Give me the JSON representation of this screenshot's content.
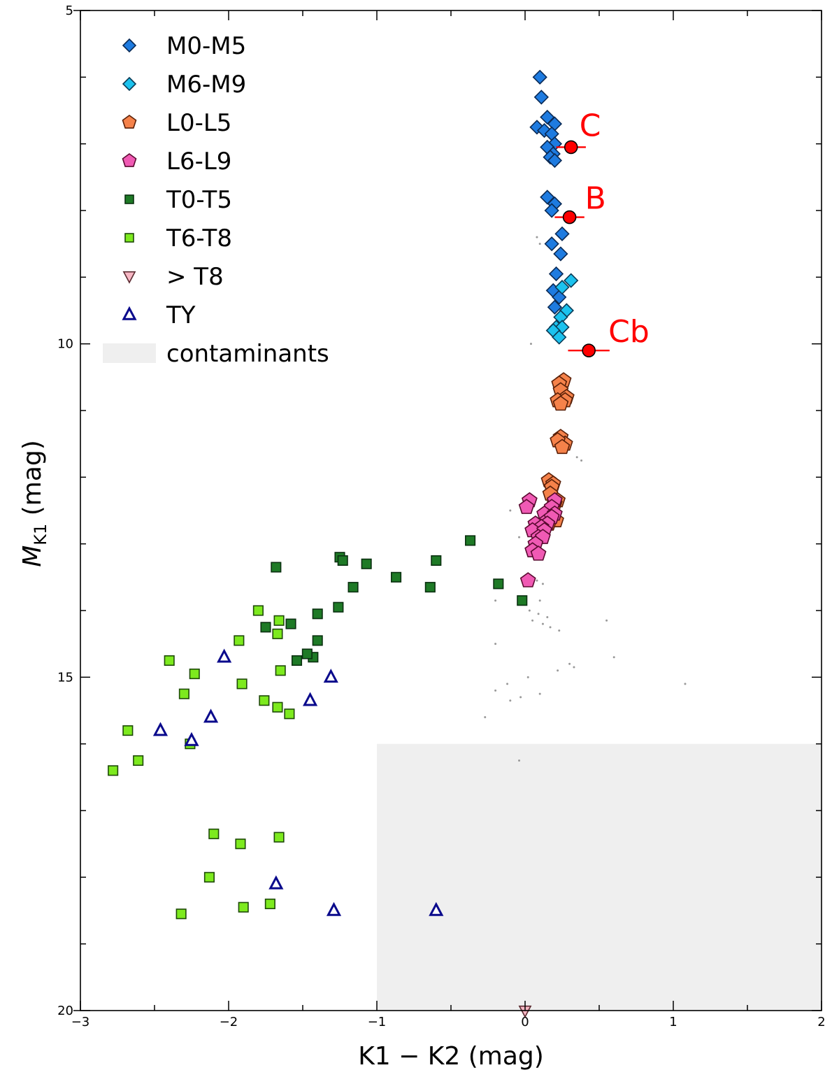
{
  "chart_data": {
    "type": "scatter",
    "xlabel": "K1 − K2 (mag)",
    "ylabel_main": "M",
    "ylabel_sub": "K1",
    "ylabel_unit": " (mag)",
    "xlim": [
      -3,
      2
    ],
    "ylim": [
      20,
      5
    ],
    "y_inverted": true,
    "x_ticks": [
      -3,
      -2,
      -1,
      0,
      1,
      2
    ],
    "x_tick_labels": [
      "−3",
      "−2",
      "−1",
      "0",
      "1",
      "2"
    ],
    "x_minor_step": 0.5,
    "y_ticks": [
      5,
      10,
      15,
      20
    ],
    "y_tick_labels": [
      "5",
      "10",
      "15",
      "20"
    ],
    "y_minor_step": 1,
    "legend_position": "top-left",
    "contaminant_region": {
      "x_range": [
        -1,
        2
      ],
      "y_range": [
        16,
        20
      ],
      "color": "#efefef"
    },
    "legend": [
      {
        "label": "M0-M5",
        "series": "m0m5"
      },
      {
        "label": "M6-M9",
        "series": "m6m9"
      },
      {
        "label": "L0-L5",
        "series": "l0l5"
      },
      {
        "label": "L6-L9",
        "series": "l6l9"
      },
      {
        "label": "T0-T5",
        "series": "t0t5"
      },
      {
        "label": "T6-T8",
        "series": "t6t8"
      },
      {
        "label": "> T8",
        "series": "gt8"
      },
      {
        "label": "TY",
        "series": "ty"
      },
      {
        "label": "contaminants",
        "series": "contaminants"
      }
    ],
    "series": [
      {
        "key": "m0m5",
        "name": "M0-M5",
        "marker": "diamond",
        "fill": "#1e7be0",
        "stroke": "#0a2a55",
        "points": [
          [
            0.1,
            6.0
          ],
          [
            0.11,
            6.3
          ],
          [
            0.15,
            6.6
          ],
          [
            0.2,
            6.7
          ],
          [
            0.08,
            6.75
          ],
          [
            0.13,
            6.8
          ],
          [
            0.18,
            6.85
          ],
          [
            0.2,
            7.0
          ],
          [
            0.15,
            7.05
          ],
          [
            0.19,
            7.15
          ],
          [
            0.17,
            7.2
          ],
          [
            0.2,
            7.25
          ],
          [
            0.15,
            7.8
          ],
          [
            0.2,
            7.9
          ],
          [
            0.18,
            8.0
          ],
          [
            0.25,
            8.35
          ],
          [
            0.18,
            8.5
          ],
          [
            0.24,
            8.65
          ],
          [
            0.21,
            8.95
          ],
          [
            0.19,
            9.2
          ],
          [
            0.23,
            9.3
          ],
          [
            0.2,
            9.45
          ]
        ]
      },
      {
        "key": "m6m9",
        "name": "M6-M9",
        "marker": "diamond",
        "fill": "#1cc2ee",
        "stroke": "#0a3a55",
        "points": [
          [
            0.31,
            9.05
          ],
          [
            0.25,
            9.15
          ],
          [
            0.28,
            9.5
          ],
          [
            0.24,
            9.6
          ],
          [
            0.21,
            9.75
          ],
          [
            0.25,
            9.75
          ],
          [
            0.19,
            9.8
          ],
          [
            0.23,
            9.9
          ]
        ]
      },
      {
        "key": "l0l5",
        "name": "L0-L5",
        "marker": "pentagon",
        "fill": "#f5824a",
        "stroke": "#5a2008",
        "points": [
          [
            0.26,
            10.55
          ],
          [
            0.23,
            10.6
          ],
          [
            0.24,
            10.7
          ],
          [
            0.28,
            10.8
          ],
          [
            0.22,
            10.85
          ],
          [
            0.27,
            10.85
          ],
          [
            0.24,
            10.9
          ],
          [
            0.24,
            11.4
          ],
          [
            0.27,
            11.5
          ],
          [
            0.22,
            11.45
          ],
          [
            0.25,
            11.55
          ],
          [
            0.16,
            12.05
          ],
          [
            0.19,
            12.1
          ],
          [
            0.18,
            12.15
          ],
          [
            0.17,
            12.25
          ],
          [
            0.22,
            12.35
          ],
          [
            0.2,
            12.4
          ],
          [
            0.21,
            12.65
          ],
          [
            0.16,
            12.7
          ]
        ]
      },
      {
        "key": "l6l9",
        "name": "L6-L9",
        "marker": "pentagon",
        "fill": "#f05ab4",
        "stroke": "#5a0a30",
        "points": [
          [
            0.03,
            12.35
          ],
          [
            0.2,
            12.35
          ],
          [
            0.18,
            12.45
          ],
          [
            0.01,
            12.45
          ],
          [
            0.13,
            12.55
          ],
          [
            0.2,
            12.55
          ],
          [
            0.15,
            12.65
          ],
          [
            0.18,
            12.6
          ],
          [
            0.15,
            12.7
          ],
          [
            0.07,
            12.7
          ],
          [
            0.11,
            12.75
          ],
          [
            0.05,
            12.8
          ],
          [
            0.13,
            12.8
          ],
          [
            0.09,
            12.9
          ],
          [
            0.12,
            12.9
          ],
          [
            0.07,
            13.0
          ],
          [
            0.05,
            13.1
          ],
          [
            0.09,
            13.15
          ],
          [
            0.02,
            13.55
          ]
        ]
      },
      {
        "key": "t0t5",
        "name": "T0-T5",
        "marker": "square",
        "fill": "#1e7a26",
        "stroke": "#0a3010",
        "points": [
          [
            -0.37,
            12.95
          ],
          [
            -0.6,
            13.25
          ],
          [
            -1.25,
            13.2
          ],
          [
            -1.23,
            13.25
          ],
          [
            -1.07,
            13.3
          ],
          [
            -1.68,
            13.35
          ],
          [
            -0.87,
            13.5
          ],
          [
            -0.18,
            13.6
          ],
          [
            -0.64,
            13.65
          ],
          [
            -1.16,
            13.65
          ],
          [
            -0.02,
            13.85
          ],
          [
            -1.26,
            13.95
          ],
          [
            -1.4,
            14.05
          ],
          [
            -1.58,
            14.2
          ],
          [
            -1.75,
            14.25
          ],
          [
            -1.4,
            14.45
          ],
          [
            -1.43,
            14.7
          ],
          [
            -1.47,
            14.65
          ],
          [
            -1.54,
            14.75
          ]
        ]
      },
      {
        "key": "t6t8",
        "name": "T6-T8",
        "marker": "square",
        "fill": "#7dea1e",
        "stroke": "#1e4a08",
        "points": [
          [
            -1.8,
            14.0
          ],
          [
            -1.66,
            14.15
          ],
          [
            -1.67,
            14.35
          ],
          [
            -1.93,
            14.45
          ],
          [
            -2.4,
            14.75
          ],
          [
            -2.23,
            14.95
          ],
          [
            -1.65,
            14.9
          ],
          [
            -1.91,
            15.1
          ],
          [
            -2.3,
            15.25
          ],
          [
            -1.76,
            15.35
          ],
          [
            -1.67,
            15.45
          ],
          [
            -1.59,
            15.55
          ],
          [
            -2.68,
            15.8
          ],
          [
            -2.61,
            16.25
          ],
          [
            -2.26,
            16.0
          ],
          [
            -2.78,
            16.4
          ],
          [
            -2.1,
            17.35
          ],
          [
            -1.92,
            17.5
          ],
          [
            -1.66,
            17.4
          ],
          [
            -2.13,
            18.0
          ],
          [
            -2.32,
            18.55
          ],
          [
            -1.9,
            18.45
          ],
          [
            -1.72,
            18.4
          ]
        ]
      },
      {
        "key": "gt8",
        "name": "> T8",
        "marker": "tri-down",
        "fill": "#f7b7c4",
        "stroke": "#5a2a30",
        "points": [
          [
            0.0,
            20.0
          ]
        ]
      },
      {
        "key": "ty",
        "name": "TY",
        "marker": "tri-up",
        "fill": "#ffffff",
        "stroke": "#0a0a8c",
        "points": [
          [
            -2.03,
            14.7
          ],
          [
            -1.31,
            15.0
          ],
          [
            -1.45,
            15.35
          ],
          [
            -2.12,
            15.6
          ],
          [
            -2.46,
            15.8
          ],
          [
            -2.25,
            15.95
          ],
          [
            -1.68,
            18.1
          ],
          [
            -1.29,
            18.5
          ],
          [
            -0.6,
            18.5
          ]
        ]
      },
      {
        "key": "contaminants",
        "name": "contaminants",
        "marker": "dot",
        "fill": "#999999",
        "stroke": "none",
        "points": [
          [
            0.08,
            8.4
          ],
          [
            0.1,
            8.5
          ],
          [
            0.04,
            10.0
          ],
          [
            0.38,
            11.75
          ],
          [
            0.35,
            11.7
          ],
          [
            -0.1,
            12.5
          ],
          [
            -0.04,
            12.9
          ],
          [
            0.02,
            13.5
          ],
          [
            0.08,
            13.55
          ],
          [
            0.12,
            13.6
          ],
          [
            -0.2,
            13.85
          ],
          [
            0.1,
            13.85
          ],
          [
            0.03,
            14.0
          ],
          [
            0.09,
            14.05
          ],
          [
            0.15,
            14.1
          ],
          [
            0.05,
            14.15
          ],
          [
            0.12,
            14.2
          ],
          [
            0.17,
            14.25
          ],
          [
            0.23,
            14.3
          ],
          [
            0.55,
            14.15
          ],
          [
            -0.2,
            14.5
          ],
          [
            0.6,
            14.7
          ],
          [
            0.3,
            14.8
          ],
          [
            0.33,
            14.85
          ],
          [
            0.22,
            14.9
          ],
          [
            0.02,
            15.0
          ],
          [
            -0.12,
            15.1
          ],
          [
            -0.2,
            15.2
          ],
          [
            0.1,
            15.25
          ],
          [
            -0.03,
            15.3
          ],
          [
            -0.1,
            15.35
          ],
          [
            -0.27,
            15.6
          ],
          [
            -0.04,
            16.25
          ],
          [
            1.08,
            15.1
          ]
        ]
      }
    ],
    "annotations": [
      {
        "label": "C",
        "x": 0.31,
        "y": 7.05,
        "xerr": 0.1,
        "label_dx": 12,
        "label_dy": -16
      },
      {
        "label": "B",
        "x": 0.3,
        "y": 8.1,
        "xerr": 0.1,
        "label_dx": 22,
        "label_dy": -12
      },
      {
        "label": "Cb",
        "x": 0.43,
        "y": 10.1,
        "xerr": 0.14,
        "label_dx": 28,
        "label_dy": -12
      }
    ],
    "annotation_color": "#ff0000"
  }
}
